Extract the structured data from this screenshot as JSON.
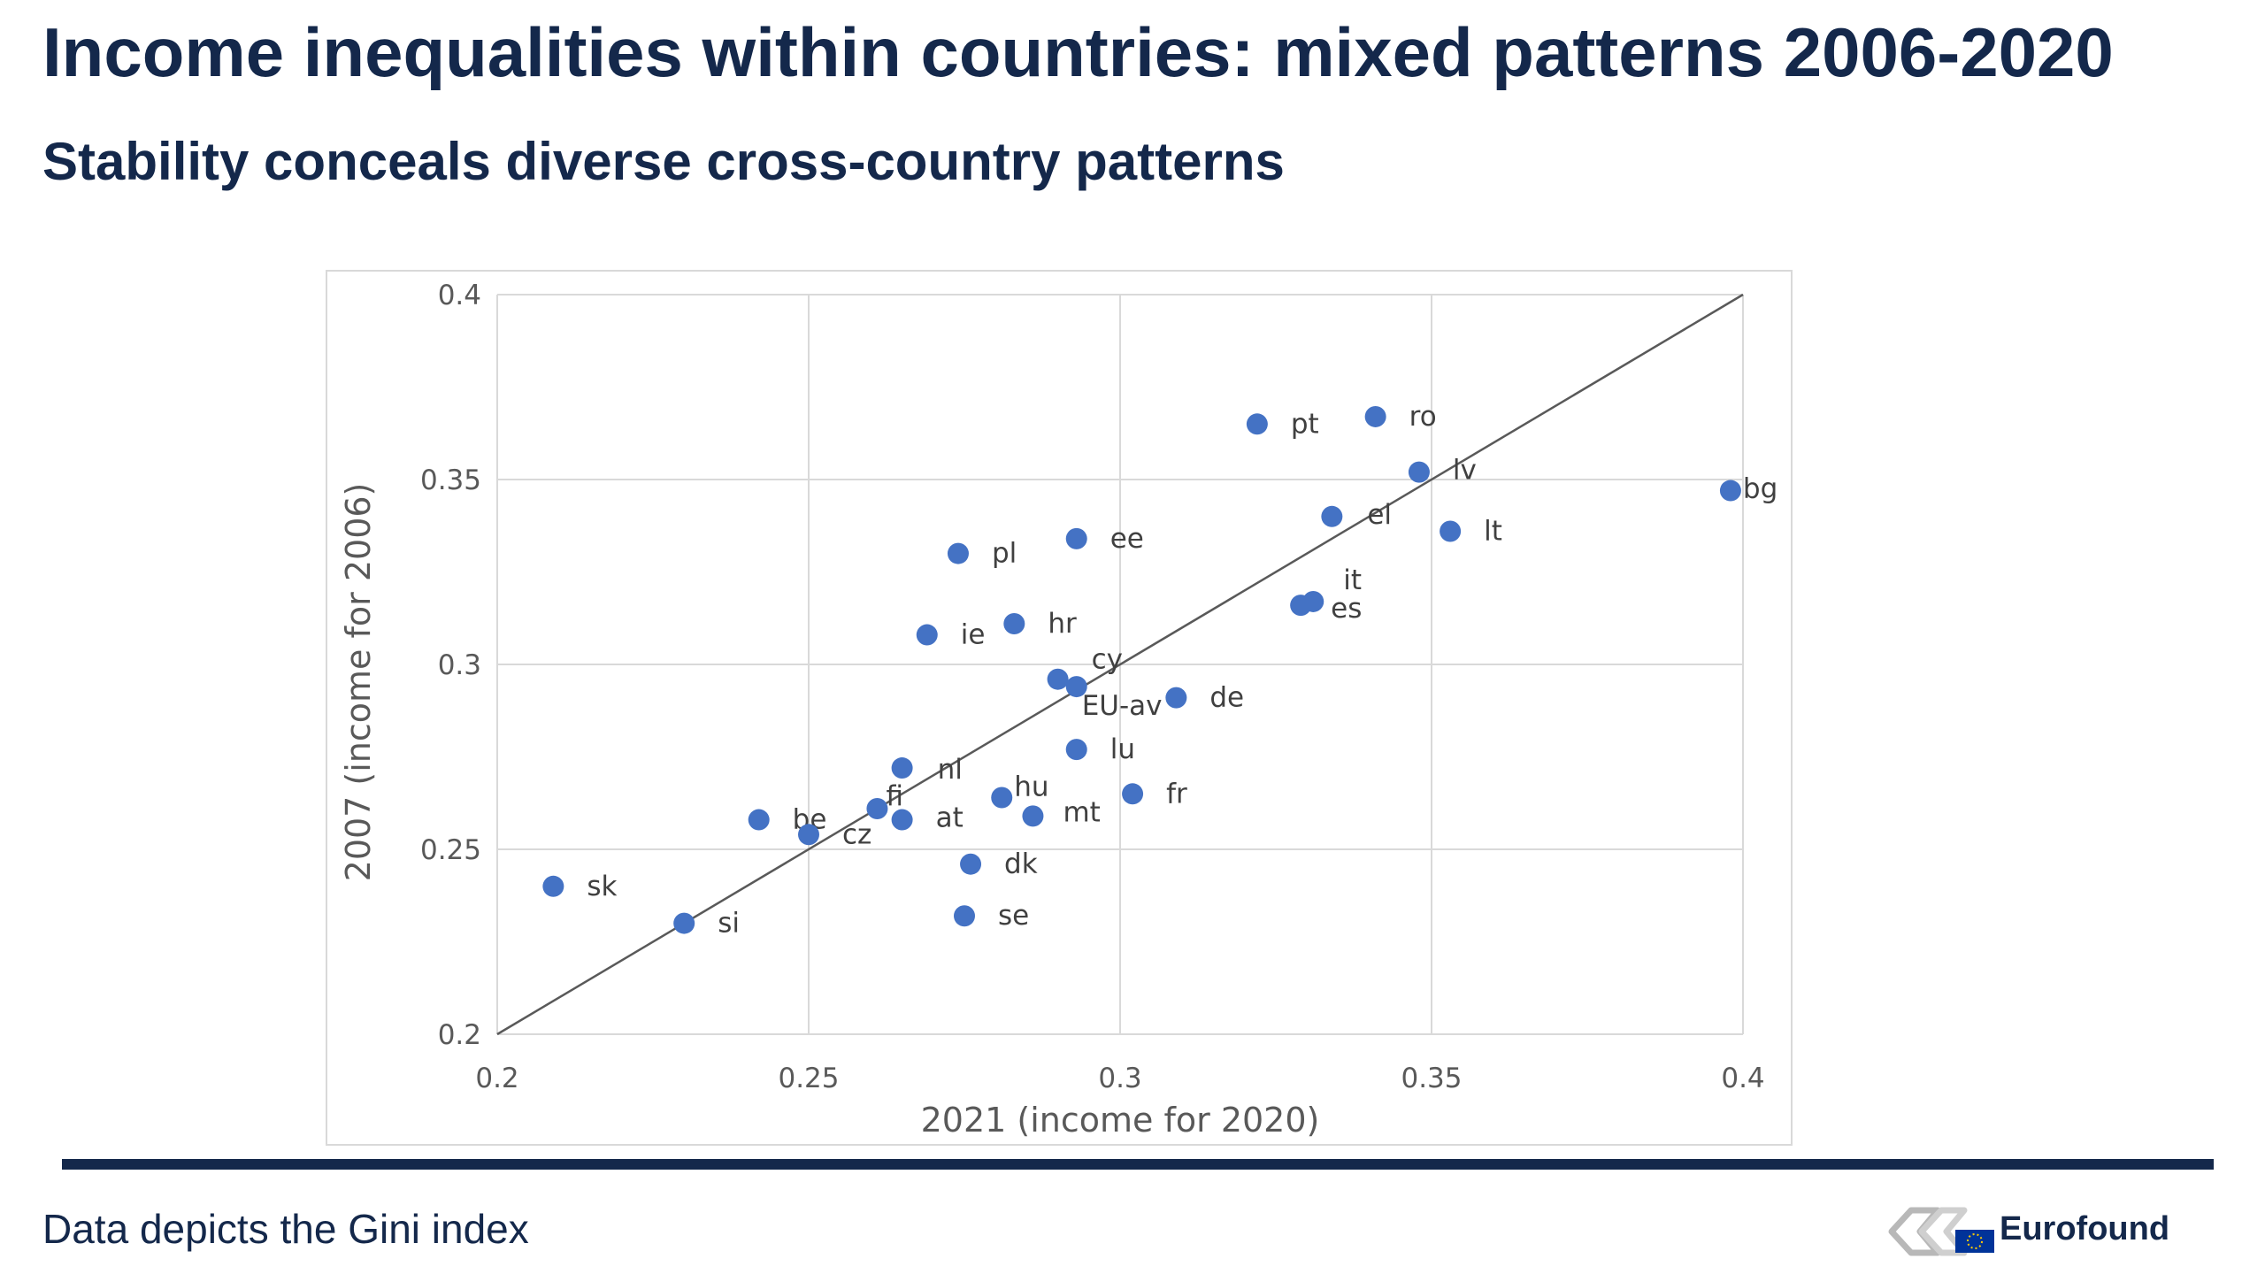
{
  "slide": {
    "title": "Income inequalities within countries: mixed patterns 2006-2020",
    "subtitle": "Stability conceals diverse cross-country patterns",
    "footnote": "Data depicts the Gini index"
  },
  "logo": {
    "text": "Eurofound",
    "icon": "eurofound-logo-icon",
    "flag_color": "#003399"
  },
  "colors": {
    "title": "#14284b",
    "marker": "#4472c4",
    "grid": "#d9d9d9",
    "diagonal": "#595959"
  },
  "chart_data": {
    "type": "scatter",
    "xlabel": "2021 (income for 2020)",
    "ylabel": "2007 (income for 2006)",
    "xlim": [
      0.2,
      0.4
    ],
    "ylim": [
      0.2,
      0.4
    ],
    "xticks": [
      "0.2",
      "0.25",
      "0.3",
      "0.35",
      "0.4"
    ],
    "yticks": [
      "0.2",
      "0.25",
      "0.3",
      "0.35",
      "0.4"
    ],
    "grid": true,
    "reference_line": "y = x",
    "points": [
      {
        "label": "pt",
        "x": 0.322,
        "y": 0.365
      },
      {
        "label": "ro",
        "x": 0.341,
        "y": 0.367
      },
      {
        "label": "lv",
        "x": 0.348,
        "y": 0.352
      },
      {
        "label": "bg",
        "x": 0.398,
        "y": 0.347
      },
      {
        "label": "el",
        "x": 0.334,
        "y": 0.34
      },
      {
        "label": "lt",
        "x": 0.353,
        "y": 0.336
      },
      {
        "label": "pl",
        "x": 0.274,
        "y": 0.33
      },
      {
        "label": "ee",
        "x": 0.293,
        "y": 0.334
      },
      {
        "label": "it",
        "x": 0.331,
        "y": 0.317
      },
      {
        "label": "es",
        "x": 0.329,
        "y": 0.316
      },
      {
        "label": "ie",
        "x": 0.269,
        "y": 0.308
      },
      {
        "label": "hr",
        "x": 0.283,
        "y": 0.311
      },
      {
        "label": "cy",
        "x": 0.29,
        "y": 0.296
      },
      {
        "label": "EU-av",
        "x": 0.293,
        "y": 0.294
      },
      {
        "label": "de",
        "x": 0.309,
        "y": 0.291
      },
      {
        "label": "lu",
        "x": 0.293,
        "y": 0.277
      },
      {
        "label": "nl",
        "x": 0.265,
        "y": 0.272
      },
      {
        "label": "fr",
        "x": 0.302,
        "y": 0.265
      },
      {
        "label": "hu",
        "x": 0.281,
        "y": 0.264
      },
      {
        "label": "mt",
        "x": 0.286,
        "y": 0.259
      },
      {
        "label": "fi",
        "x": 0.261,
        "y": 0.261
      },
      {
        "label": "at",
        "x": 0.265,
        "y": 0.258
      },
      {
        "label": "be",
        "x": 0.242,
        "y": 0.258
      },
      {
        "label": "cz",
        "x": 0.25,
        "y": 0.254
      },
      {
        "label": "dk",
        "x": 0.276,
        "y": 0.246
      },
      {
        "label": "se",
        "x": 0.275,
        "y": 0.232
      },
      {
        "label": "sk",
        "x": 0.209,
        "y": 0.24
      },
      {
        "label": "si",
        "x": 0.23,
        "y": 0.23
      }
    ]
  }
}
